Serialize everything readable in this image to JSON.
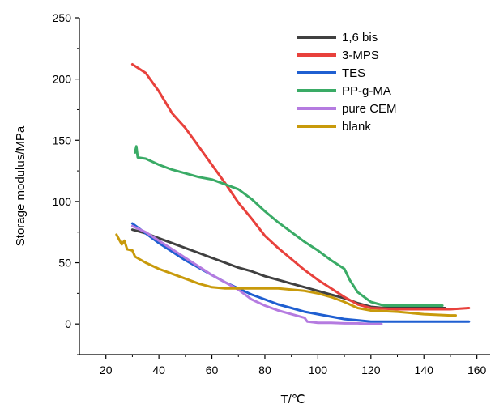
{
  "chart_data": {
    "type": "line",
    "title": "",
    "xlabel": "T/℃",
    "ylabel": "Storage modulus/MPa",
    "xlim": [
      10,
      165
    ],
    "ylim": [
      -25,
      250
    ],
    "xticks": [
      20,
      40,
      60,
      80,
      100,
      120,
      140,
      160
    ],
    "yticks": [
      0,
      50,
      100,
      150,
      200,
      250
    ],
    "grid": false,
    "legend_position": "top-right",
    "series": [
      {
        "name": "1,6 bis",
        "color": "#404040",
        "points": [
          [
            30,
            77
          ],
          [
            35,
            74
          ],
          [
            40,
            70
          ],
          [
            45,
            66
          ],
          [
            50,
            62
          ],
          [
            55,
            58
          ],
          [
            60,
            54
          ],
          [
            65,
            50
          ],
          [
            70,
            46
          ],
          [
            75,
            43
          ],
          [
            80,
            39
          ],
          [
            85,
            36
          ],
          [
            90,
            33
          ],
          [
            95,
            30
          ],
          [
            100,
            27
          ],
          [
            105,
            24
          ],
          [
            110,
            21
          ],
          [
            115,
            17
          ],
          [
            120,
            14
          ],
          [
            125,
            13
          ],
          [
            130,
            13
          ],
          [
            135,
            13
          ],
          [
            140,
            13
          ],
          [
            145,
            13
          ],
          [
            148,
            13
          ]
        ]
      },
      {
        "name": "3-MPS",
        "color": "#e8413c",
        "points": [
          [
            30,
            212
          ],
          [
            35,
            205
          ],
          [
            40,
            190
          ],
          [
            45,
            172
          ],
          [
            50,
            160
          ],
          [
            55,
            145
          ],
          [
            60,
            130
          ],
          [
            65,
            115
          ],
          [
            70,
            99
          ],
          [
            75,
            86
          ],
          [
            80,
            72
          ],
          [
            85,
            62
          ],
          [
            90,
            53
          ],
          [
            95,
            44
          ],
          [
            100,
            36
          ],
          [
            105,
            29
          ],
          [
            110,
            22
          ],
          [
            115,
            16
          ],
          [
            120,
            13
          ],
          [
            130,
            12
          ],
          [
            140,
            12
          ],
          [
            150,
            12
          ],
          [
            157,
            13
          ]
        ]
      },
      {
        "name": "TES",
        "color": "#1f5fd1",
        "points": [
          [
            30,
            82
          ],
          [
            35,
            74
          ],
          [
            40,
            66
          ],
          [
            45,
            59
          ],
          [
            50,
            52
          ],
          [
            55,
            46
          ],
          [
            60,
            40
          ],
          [
            65,
            34
          ],
          [
            70,
            29
          ],
          [
            75,
            24
          ],
          [
            80,
            20
          ],
          [
            85,
            16
          ],
          [
            90,
            13
          ],
          [
            95,
            10
          ],
          [
            100,
            8
          ],
          [
            105,
            6
          ],
          [
            110,
            4
          ],
          [
            115,
            3
          ],
          [
            120,
            2
          ],
          [
            130,
            2
          ],
          [
            140,
            2
          ],
          [
            150,
            2
          ],
          [
            157,
            2
          ]
        ]
      },
      {
        "name": "PP-g-MA",
        "color": "#3aab66",
        "points": [
          [
            31,
            140
          ],
          [
            31.5,
            145
          ],
          [
            32,
            136
          ],
          [
            35,
            135
          ],
          [
            40,
            130
          ],
          [
            45,
            126
          ],
          [
            50,
            123
          ],
          [
            55,
            120
          ],
          [
            60,
            118
          ],
          [
            65,
            114
          ],
          [
            70,
            110
          ],
          [
            75,
            102
          ],
          [
            80,
            92
          ],
          [
            85,
            83
          ],
          [
            90,
            75
          ],
          [
            95,
            67
          ],
          [
            100,
            60
          ],
          [
            105,
            52
          ],
          [
            110,
            45
          ],
          [
            112,
            36
          ],
          [
            115,
            26
          ],
          [
            120,
            18
          ],
          [
            125,
            15
          ],
          [
            130,
            15
          ],
          [
            140,
            15
          ],
          [
            147,
            15
          ]
        ]
      },
      {
        "name": "pure CEM",
        "color": "#b57be0",
        "points": [
          [
            30,
            80
          ],
          [
            35,
            75
          ],
          [
            40,
            68
          ],
          [
            45,
            61
          ],
          [
            50,
            54
          ],
          [
            55,
            47
          ],
          [
            60,
            40
          ],
          [
            65,
            34
          ],
          [
            70,
            28
          ],
          [
            75,
            20
          ],
          [
            80,
            15
          ],
          [
            85,
            11
          ],
          [
            90,
            8
          ],
          [
            95,
            5
          ],
          [
            96,
            2
          ],
          [
            100,
            1
          ],
          [
            105,
            1
          ],
          [
            110,
            0.5
          ],
          [
            115,
            0.5
          ],
          [
            120,
            0
          ],
          [
            124,
            0
          ]
        ]
      },
      {
        "name": "blank",
        "color": "#c89a0b",
        "points": [
          [
            24,
            73
          ],
          [
            26,
            65
          ],
          [
            27,
            68
          ],
          [
            28,
            61
          ],
          [
            30,
            60
          ],
          [
            31,
            55
          ],
          [
            35,
            50
          ],
          [
            40,
            45
          ],
          [
            45,
            41
          ],
          [
            50,
            37
          ],
          [
            55,
            33
          ],
          [
            60,
            30
          ],
          [
            65,
            29
          ],
          [
            70,
            29
          ],
          [
            75,
            29
          ],
          [
            80,
            29
          ],
          [
            85,
            29
          ],
          [
            90,
            28
          ],
          [
            95,
            27
          ],
          [
            100,
            25
          ],
          [
            105,
            22
          ],
          [
            110,
            18
          ],
          [
            115,
            13
          ],
          [
            120,
            11
          ],
          [
            130,
            10
          ],
          [
            140,
            8
          ],
          [
            150,
            7
          ],
          [
            152,
            7
          ]
        ]
      }
    ]
  }
}
